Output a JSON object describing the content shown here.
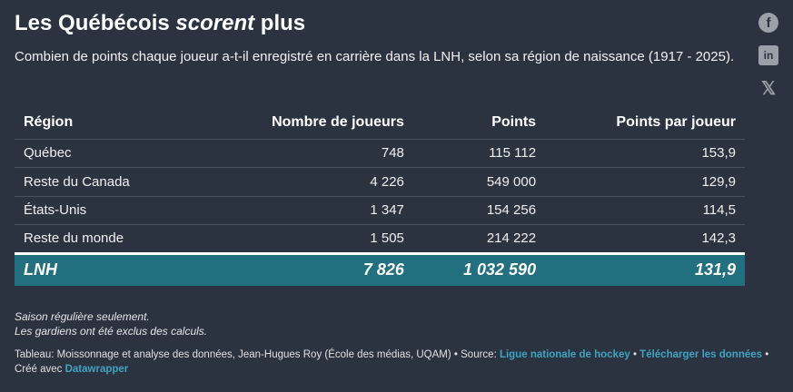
{
  "title_pre": "Les Québécois ",
  "title_em": "scorent",
  "title_post": " plus",
  "subtitle": "Combien de points chaque joueur a-t-il enregistré en carrière dans la LNH, selon sa région de naissance (1917 - 2025).",
  "social": {
    "facebook": "f",
    "linkedin": "in",
    "x": "𝕏"
  },
  "headers": [
    "Région",
    "Nombre de joueurs",
    "Points",
    "Points par joueur"
  ],
  "rows": [
    [
      "Québec",
      "748",
      "115 112",
      "153,9"
    ],
    [
      "Reste du Canada",
      "4 226",
      "549 000",
      "129,9"
    ],
    [
      "États-Unis",
      "1 347",
      "154 256",
      "114,5"
    ],
    [
      "Reste du monde",
      "1 505",
      "214 222",
      "142,3"
    ]
  ],
  "total": [
    "LNH",
    "7 826",
    "1 032 590",
    "131,9"
  ],
  "notes": [
    "Saison régulière seulement.",
    "Les gardiens ont été exclus des calculs."
  ],
  "footer": {
    "credit": "Tableau: Moissonnage et analyse des données, Jean-Hugues Roy (École des médias, UQAM) • Source: ",
    "source_link": "Ligue nationale de hockey",
    "sep": " • ",
    "download_link": "Télécharger les données",
    "created": " • Créé avec ",
    "dw_link": "Datawrapper"
  },
  "colors": {
    "background": "#2c3340",
    "total_row": "#226f80",
    "link": "#3fa3c2"
  }
}
